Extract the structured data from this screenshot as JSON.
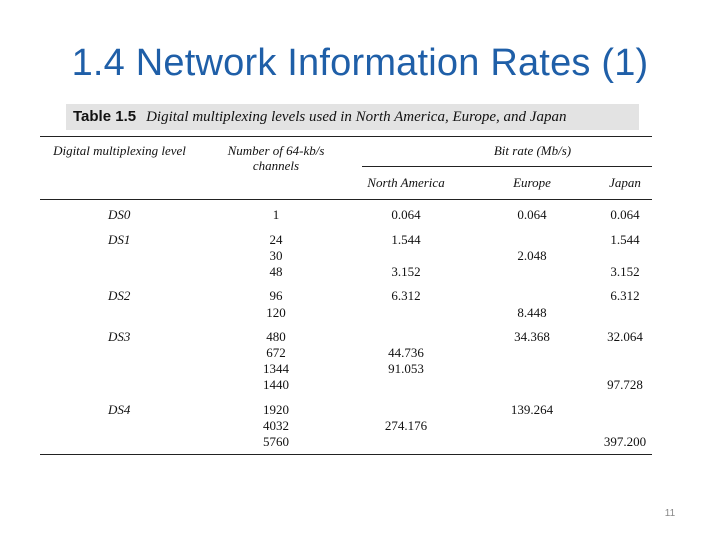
{
  "slide": {
    "title": "1.4 Network Information Rates (1)",
    "page_number": "11"
  },
  "table": {
    "label": "Table 1.5",
    "caption": "Digital multiplexing levels used in North America, Europe, and Japan",
    "headers": {
      "level": "Digital multiplexing level",
      "channels": "Number of 64-kb/s channels",
      "bitrate": "Bit rate (Mb/s)",
      "north_america": "North America",
      "europe": "Europe",
      "japan": "Japan"
    },
    "rows": [
      {
        "level": "DS0",
        "channels": "1",
        "north_america": "0.064",
        "europe": "0.064",
        "japan": "0.064"
      },
      {
        "level": "DS1",
        "channels": "24",
        "north_america": "1.544",
        "europe": "",
        "japan": "1.544"
      },
      {
        "level": "",
        "channels": "30",
        "north_america": "",
        "europe": "2.048",
        "japan": ""
      },
      {
        "level": "",
        "channels": "48",
        "north_america": "3.152",
        "europe": "",
        "japan": "3.152"
      },
      {
        "level": "DS2",
        "channels": "96",
        "north_america": "6.312",
        "europe": "",
        "japan": "6.312"
      },
      {
        "level": "",
        "channels": "120",
        "north_america": "",
        "europe": "8.448",
        "japan": ""
      },
      {
        "level": "DS3",
        "channels": "480",
        "north_america": "",
        "europe": "34.368",
        "japan": "32.064"
      },
      {
        "level": "",
        "channels": "672",
        "north_america": "44.736",
        "europe": "",
        "japan": ""
      },
      {
        "level": "",
        "channels": "1344",
        "north_america": "91.053",
        "europe": "",
        "japan": ""
      },
      {
        "level": "",
        "channels": "1440",
        "north_america": "",
        "europe": "",
        "japan": "97.728"
      },
      {
        "level": "DS4",
        "channels": "1920",
        "north_america": "",
        "europe": "139.264",
        "japan": ""
      },
      {
        "level": "",
        "channels": "4032",
        "north_america": "274.176",
        "europe": "",
        "japan": ""
      },
      {
        "level": "",
        "channels": "5760",
        "north_america": "",
        "europe": "",
        "japan": "397.200"
      }
    ]
  }
}
